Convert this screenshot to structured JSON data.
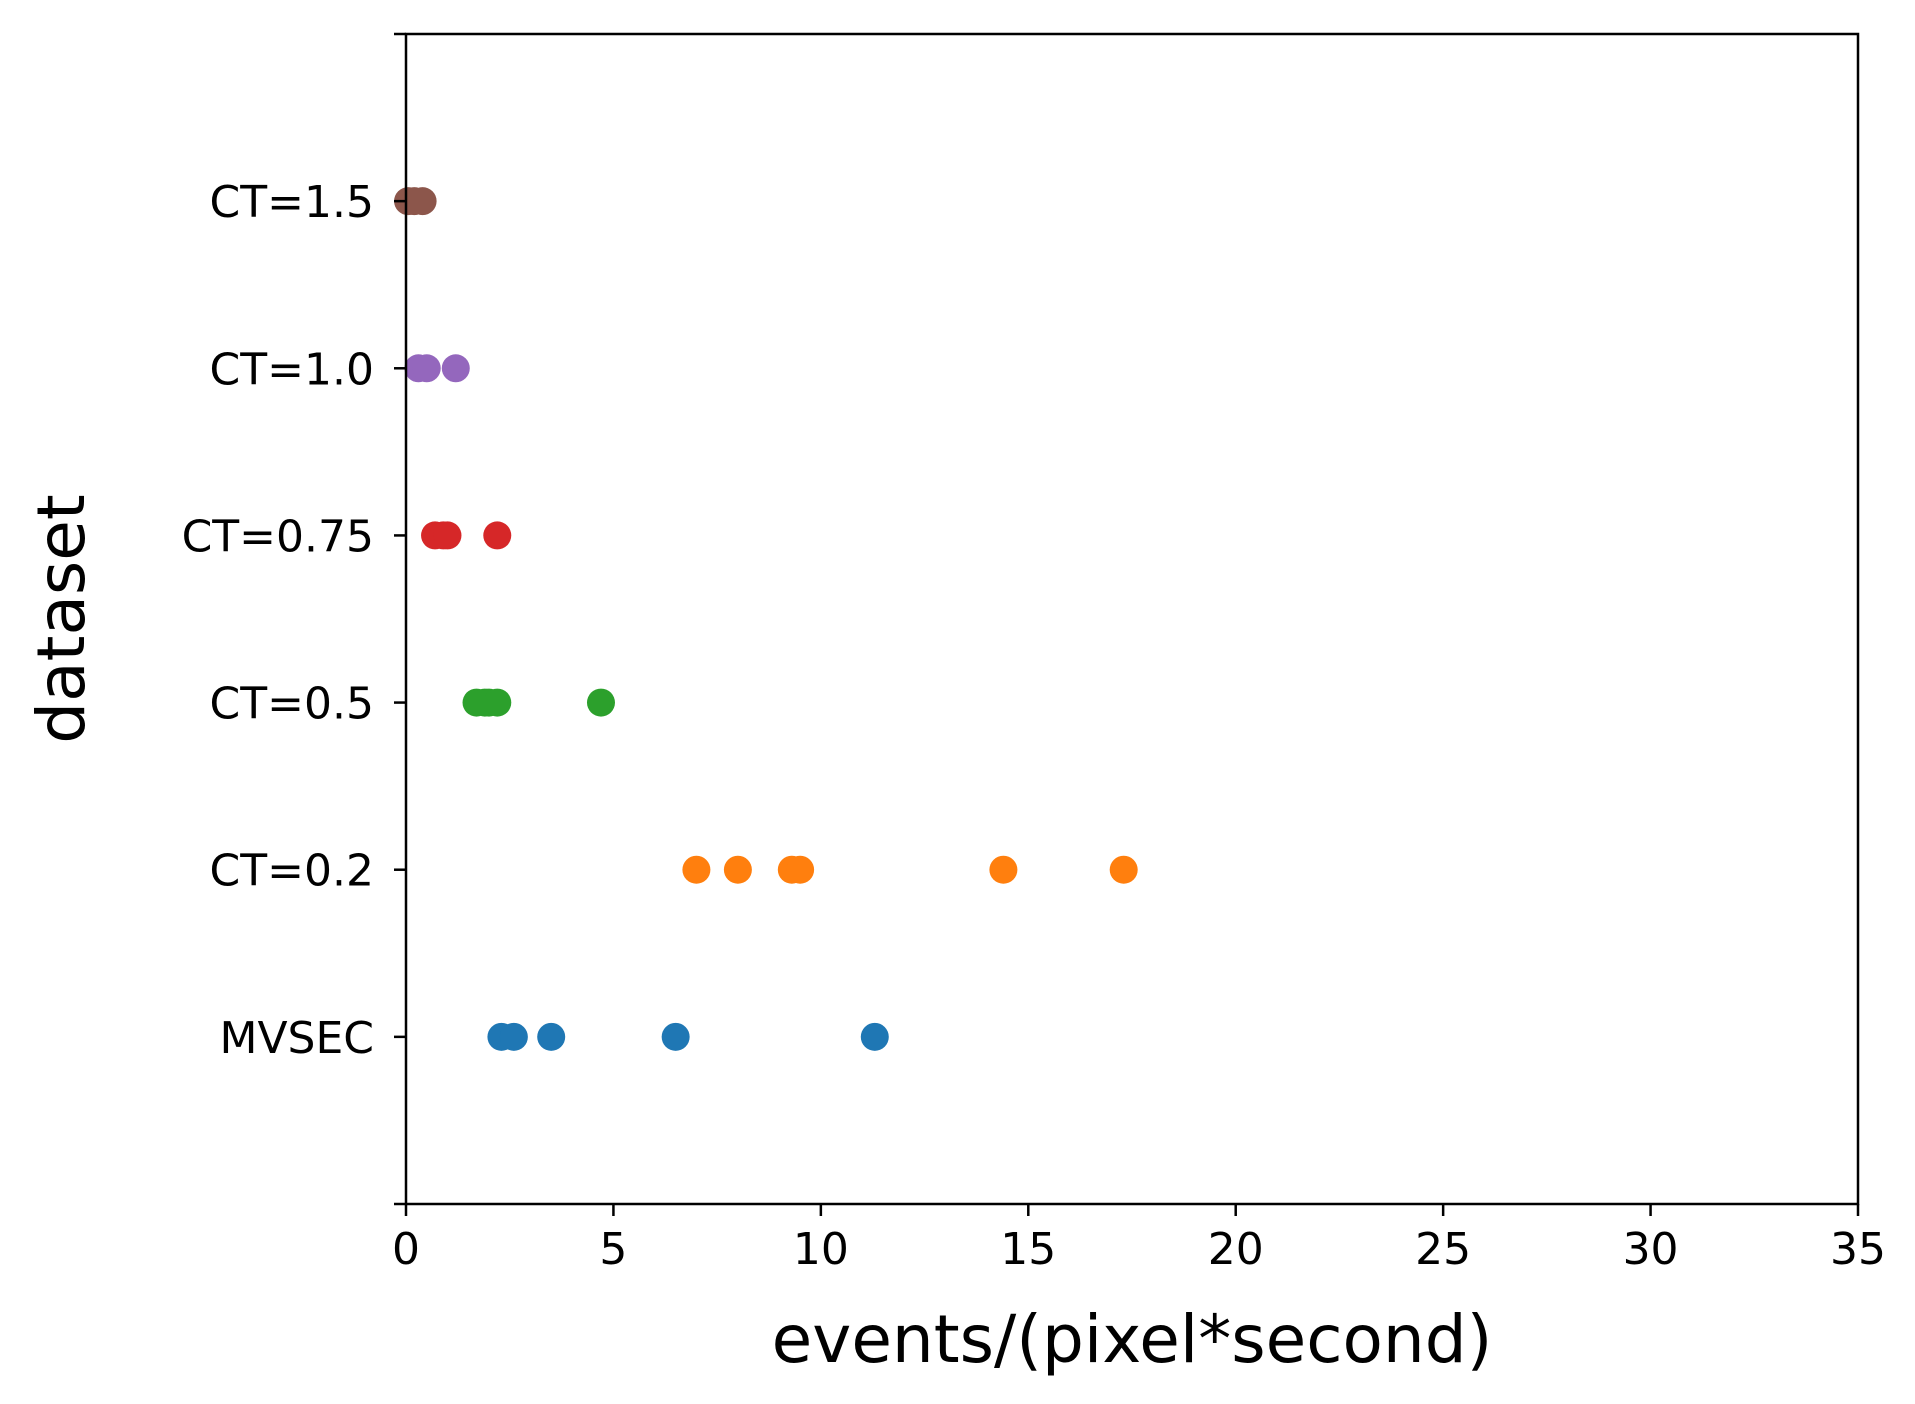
{
  "chart_data": {
    "type": "scatter",
    "title": "",
    "xlabel": "events/(pixel*second)",
    "ylabel": "dataset",
    "xlim": [
      0,
      35
    ],
    "xticks": [
      "0",
      "5",
      "10",
      "15",
      "20",
      "25",
      "30",
      "35"
    ],
    "categories": [
      "MVSEC",
      "CT=0.2",
      "CT=0.5",
      "CT=0.75",
      "CT=1.0",
      "CT=1.5"
    ],
    "grid": false,
    "legend": "none",
    "series": [
      {
        "category": "MVSEC",
        "color": "#1f77b4",
        "values": [
          2.3,
          2.6,
          3.5,
          6.5,
          11.3
        ]
      },
      {
        "category": "CT=0.2",
        "color": "#ff7f0e",
        "values": [
          7.0,
          8.0,
          9.3,
          9.5,
          14.4,
          17.3
        ]
      },
      {
        "category": "CT=0.5",
        "color": "#2ca02c",
        "values": [
          1.7,
          1.9,
          2.0,
          2.2,
          4.7
        ]
      },
      {
        "category": "CT=0.75",
        "color": "#d62728",
        "values": [
          0.7,
          0.9,
          1.0,
          2.2
        ]
      },
      {
        "category": "CT=1.0",
        "color": "#9467bd",
        "values": [
          0.3,
          0.5,
          1.2
        ]
      },
      {
        "category": "CT=1.5",
        "color": "#8c564b",
        "values": [
          0.05,
          0.2,
          0.4
        ]
      }
    ]
  }
}
